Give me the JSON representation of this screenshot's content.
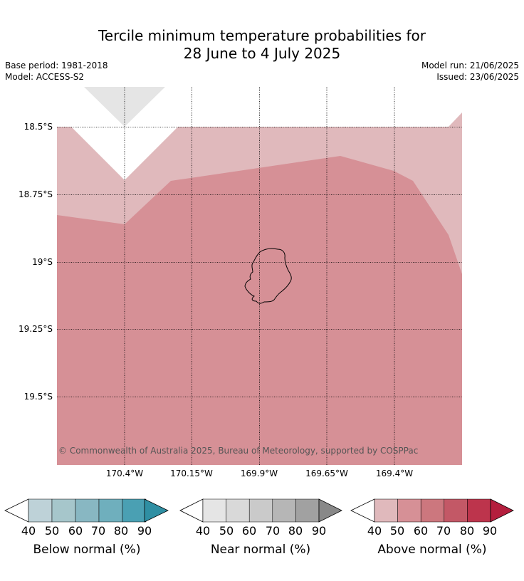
{
  "title": {
    "line1": "Tercile minimum temperature probabilities for",
    "line2": "28 June to 4 July 2025"
  },
  "meta": {
    "base_period": "Base period: 1981-2018",
    "model": "Model: ACCESS-S2",
    "model_run": "Model run: 21/06/2025",
    "issued": "Issued: 23/06/2025"
  },
  "map": {
    "lat_labels": [
      "18.5°S",
      "18.75°S",
      "19°S",
      "19.25°S",
      "19.5°S"
    ],
    "lat_values": [
      -18.5,
      -18.75,
      -19.0,
      -19.25,
      -19.5
    ],
    "lon_labels": [
      "170.4°W",
      "170.15°W",
      "169.9°W",
      "169.65°W",
      "169.4°W"
    ],
    "lon_values": [
      -170.4,
      -170.15,
      -169.9,
      -169.65,
      -169.4
    ],
    "copyright": "© Commonwealth of Australia 2025, Bureau of Meteorology, supported by COSPPac",
    "colors": {
      "above_40_50": "#e0b9bc",
      "above_50_60": "#d69096",
      "near_40_50": "#e5e5e5",
      "coastline": "#000000",
      "grid": "#000000"
    }
  },
  "colorbars": [
    {
      "title": "Below normal (%)",
      "ticks": [
        "40",
        "50",
        "60",
        "70",
        "80",
        "90"
      ],
      "colors": [
        "#bed2d8",
        "#a6c6cb",
        "#88b7c2",
        "#6fafbd",
        "#4aa0b3",
        "#2f8fa3"
      ]
    },
    {
      "title": "Near normal (%)",
      "ticks": [
        "40",
        "50",
        "60",
        "70",
        "80",
        "90"
      ],
      "colors": [
        "#e5e5e5",
        "#d9d9d9",
        "#cacaca",
        "#b6b6b6",
        "#a1a1a1",
        "#888888"
      ]
    },
    {
      "title": "Above normal (%)",
      "ticks": [
        "40",
        "50",
        "60",
        "70",
        "80",
        "90"
      ],
      "colors": [
        "#e0b9bc",
        "#d69096",
        "#cc777e",
        "#c35866",
        "#bd344c",
        "#b41e3d"
      ]
    }
  ]
}
